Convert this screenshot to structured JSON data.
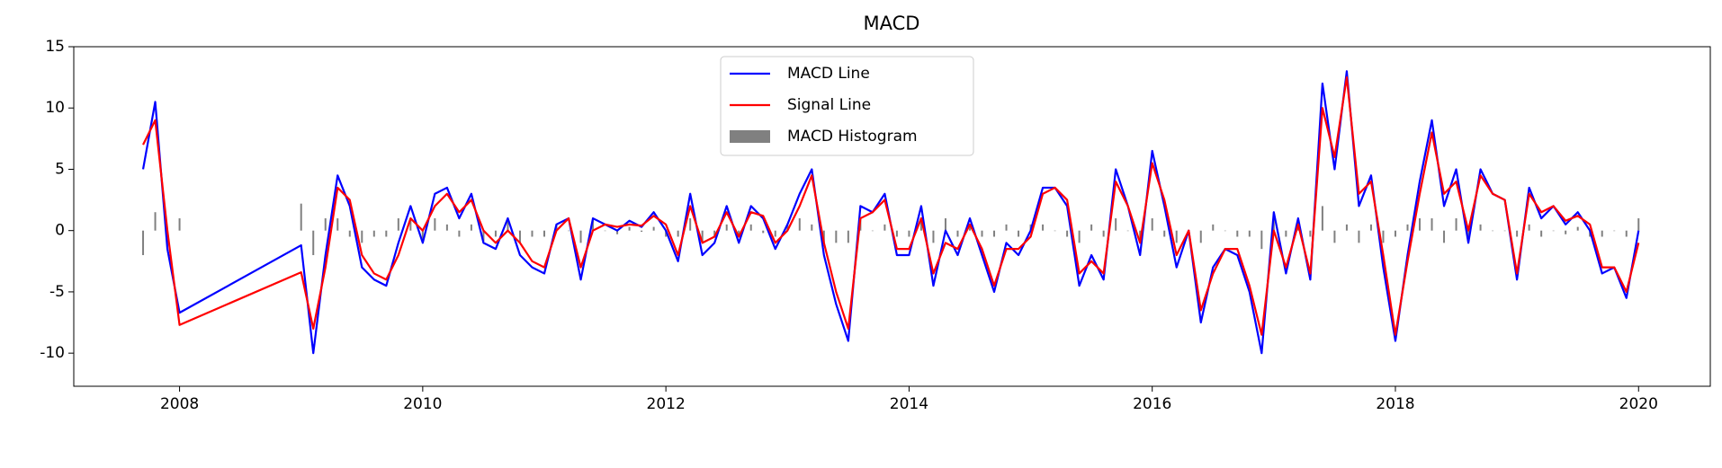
{
  "chart_data": {
    "type": "line",
    "title": "MACD",
    "x": [
      2007.7,
      2007.8,
      2007.9,
      2008.0,
      2009.0,
      2009.1,
      2009.2,
      2009.3,
      2009.4,
      2009.5,
      2009.6,
      2009.7,
      2009.8,
      2009.9,
      2010.0,
      2010.1,
      2010.2,
      2010.3,
      2010.4,
      2010.5,
      2010.6,
      2010.7,
      2010.8,
      2010.9,
      2011.0,
      2011.1,
      2011.2,
      2011.3,
      2011.4,
      2011.5,
      2011.6,
      2011.7,
      2011.8,
      2011.9,
      2012.0,
      2012.1,
      2012.2,
      2012.3,
      2012.4,
      2012.5,
      2012.6,
      2012.7,
      2012.8,
      2012.9,
      2013.0,
      2013.1,
      2013.2,
      2013.3,
      2013.4,
      2013.5,
      2013.6,
      2013.7,
      2013.8,
      2013.9,
      2014.0,
      2014.1,
      2014.2,
      2014.3,
      2014.4,
      2014.5,
      2014.6,
      2014.7,
      2014.8,
      2014.9,
      2015.0,
      2015.1,
      2015.2,
      2015.3,
      2015.4,
      2015.5,
      2015.6,
      2015.7,
      2015.8,
      2015.9,
      2016.0,
      2016.1,
      2016.2,
      2016.3,
      2016.4,
      2016.5,
      2016.6,
      2016.7,
      2016.8,
      2016.9,
      2017.0,
      2017.1,
      2017.2,
      2017.3,
      2017.4,
      2017.5,
      2017.6,
      2017.7,
      2017.8,
      2017.9,
      2018.0,
      2018.1,
      2018.2,
      2018.3,
      2018.4,
      2018.5,
      2018.6,
      2018.7,
      2018.8,
      2018.9,
      2019.0,
      2019.1,
      2019.2,
      2019.3,
      2019.4,
      2019.5,
      2019.6,
      2019.7,
      2019.8,
      2019.9,
      2020.0
    ],
    "series": [
      {
        "name": "MACD Line",
        "color": "#0000ff",
        "type": "line",
        "values": [
          5,
          10.5,
          -1.5,
          -6.7,
          -1.2,
          -10,
          -2,
          4.5,
          2,
          -3,
          -4,
          -4.5,
          -1,
          2,
          -1,
          3,
          3.5,
          1,
          3,
          -1,
          -1.5,
          1,
          -2,
          -3,
          -3.5,
          0.5,
          1,
          -4,
          1,
          0.5,
          0,
          0.8,
          0.3,
          1.5,
          0,
          -2.5,
          3,
          -2,
          -1,
          2,
          -1,
          2,
          1,
          -1.5,
          0.5,
          3,
          5,
          -2,
          -6,
          -9,
          2,
          1.5,
          3,
          -2,
          -2,
          2,
          -4.5,
          0,
          -2,
          1,
          -2,
          -5,
          -1,
          -2,
          0,
          3.5,
          3.5,
          2,
          -4.5,
          -2,
          -4,
          5,
          2,
          -2,
          6.5,
          2,
          -3,
          0,
          -7.5,
          -3,
          -1.5,
          -2,
          -5,
          -10,
          1.5,
          -3.5,
          1,
          -4,
          12,
          5,
          13,
          2,
          4.5,
          -3,
          -9,
          -2,
          4,
          9,
          2,
          5,
          -1,
          5,
          3,
          2.5,
          -4,
          3.5,
          1,
          2,
          0.5,
          1.5,
          0,
          -3.5,
          -3,
          -5.5,
          0
        ]
      },
      {
        "name": "Signal Line",
        "color": "#ff0000",
        "type": "line",
        "values": [
          7,
          9,
          0,
          -7.7,
          -3.4,
          -8,
          -3,
          3.5,
          2.5,
          -2,
          -3.5,
          -4,
          -2,
          1,
          0,
          2,
          3,
          1.5,
          2.5,
          0,
          -1,
          0,
          -1,
          -2.5,
          -3,
          0,
          1,
          -3,
          0,
          0.5,
          0.3,
          0.5,
          0.4,
          1.2,
          0.5,
          -2,
          2,
          -1,
          -0.5,
          1.5,
          -0.5,
          1.5,
          1.2,
          -1,
          0,
          2,
          4.5,
          -1,
          -5,
          -8,
          1,
          1.5,
          2.5,
          -1.5,
          -1.5,
          1,
          -3.5,
          -1,
          -1.5,
          0.5,
          -1.5,
          -4.5,
          -1.5,
          -1.5,
          -0.5,
          3,
          3.5,
          2.5,
          -3.5,
          -2.5,
          -3.5,
          4,
          2,
          -1,
          5.5,
          2.5,
          -2,
          0,
          -6.5,
          -3.5,
          -1.5,
          -1.5,
          -4.5,
          -8.5,
          0,
          -3,
          0.5,
          -3.5,
          10,
          6,
          12.5,
          3,
          4,
          -2,
          -8.5,
          -2.5,
          3,
          8,
          3,
          4,
          0,
          4.5,
          3,
          2.5,
          -3.5,
          3,
          1.5,
          2,
          0.8,
          1.2,
          0.5,
          -3,
          -3,
          -5,
          -1
        ]
      },
      {
        "name": "MACD Histogram",
        "color": "#808080",
        "type": "bar",
        "values": [
          -2,
          1.5,
          -1.5,
          1,
          2.2,
          -2,
          1,
          1,
          -0.5,
          -1,
          -0.5,
          -0.5,
          1,
          1,
          -1,
          1,
          0.5,
          -0.5,
          0.5,
          -1,
          -0.5,
          1,
          -1,
          -0.5,
          -0.5,
          0.5,
          0,
          -1,
          1,
          0,
          -0.3,
          0.3,
          -0.1,
          0.3,
          -0.5,
          -0.5,
          1,
          -1,
          -0.5,
          0.5,
          -0.5,
          0.5,
          -0.2,
          -0.5,
          0.5,
          1,
          0.5,
          -1,
          -1,
          -1,
          1,
          0,
          0.5,
          -0.5,
          -0.5,
          1,
          -1,
          1,
          -0.5,
          0.5,
          -0.5,
          -0.5,
          0.5,
          -0.5,
          0.5,
          0.5,
          0,
          -0.5,
          -1,
          0.5,
          -0.5,
          1,
          0,
          -1,
          1,
          -0.5,
          -1,
          0,
          -1,
          0.5,
          0,
          -0.5,
          -0.5,
          -1.5,
          1.5,
          -0.5,
          0.5,
          -0.5,
          2,
          -1,
          0.5,
          -1,
          0.5,
          -1,
          -0.5,
          0.5,
          1,
          1,
          -1,
          1,
          -1,
          0.5,
          0,
          0,
          -0.5,
          0.5,
          -0.5,
          0,
          -0.3,
          0.3,
          -0.5,
          -0.5,
          0,
          -0.5,
          1
        ]
      }
    ],
    "xlim": [
      2007.13,
      2020.59
    ],
    "xticks": [
      2008,
      2010,
      2012,
      2014,
      2016,
      2018,
      2020
    ],
    "ylim": [
      -12.7,
      15
    ],
    "yticks": [
      -10,
      -5,
      0,
      5,
      10,
      15
    ],
    "legend": "upper center"
  }
}
